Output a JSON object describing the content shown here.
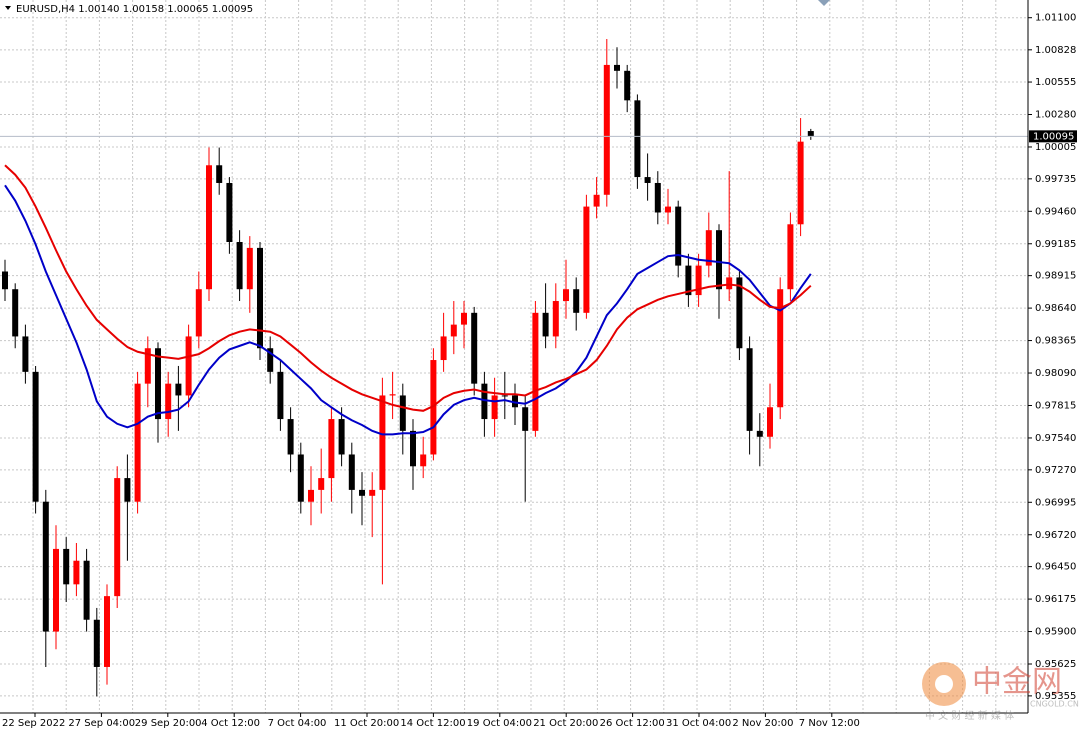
{
  "chart_data": {
    "type": "candlestick",
    "header": "EURUSD,H4  1.00140 1.00158 1.00065 1.00095",
    "ylim": [
      0.9521,
      1.0125
    ],
    "yticks": [
      {
        "value": 1.011,
        "label": "1.01100"
      },
      {
        "value": 1.00828,
        "label": "1.00828"
      },
      {
        "value": 1.00555,
        "label": "1.00555"
      },
      {
        "value": 1.0028,
        "label": "1.00280"
      },
      {
        "value": 1.00005,
        "label": "1.00005"
      },
      {
        "value": 0.99735,
        "label": "0.99735"
      },
      {
        "value": 0.9946,
        "label": "0.99460"
      },
      {
        "value": 0.99185,
        "label": "0.99185"
      },
      {
        "value": 0.98915,
        "label": "0.98915"
      },
      {
        "value": 0.9864,
        "label": "0.98640"
      },
      {
        "value": 0.98365,
        "label": "0.98365"
      },
      {
        "value": 0.9809,
        "label": "0.98090"
      },
      {
        "value": 0.97815,
        "label": "0.97815"
      },
      {
        "value": 0.9754,
        "label": "0.97540"
      },
      {
        "value": 0.9727,
        "label": "0.97270"
      },
      {
        "value": 0.96995,
        "label": "0.96995"
      },
      {
        "value": 0.9672,
        "label": "0.96720"
      },
      {
        "value": 0.9645,
        "label": "0.96450"
      },
      {
        "value": 0.96175,
        "label": "0.96175"
      },
      {
        "value": 0.959,
        "label": "0.95900"
      },
      {
        "value": 0.95625,
        "label": "0.95625"
      },
      {
        "value": 0.95355,
        "label": "0.95355"
      }
    ],
    "price_line": {
      "value": 1.00095,
      "label": "1.00095"
    },
    "x_labels": [
      "22 Sep 2022",
      "27 Sep 04:00",
      "29 Sep 20:00",
      "4 Oct 12:00",
      "7 Oct 04:00",
      "11 Oct 20:00",
      "14 Oct 12:00",
      "19 Oct 04:00",
      "21 Oct 20:00",
      "26 Oct 12:00",
      "31 Oct 04:00",
      "2 Nov 20:00",
      "7 Nov 12:00"
    ],
    "up_color": "#ff0000",
    "down_color": "#000000",
    "grid": true,
    "candles": [
      [
        0.9895,
        0.9905,
        0.987,
        0.988
      ],
      [
        0.988,
        0.9885,
        0.983,
        0.984
      ],
      [
        0.984,
        0.985,
        0.98,
        0.981
      ],
      [
        0.981,
        0.9815,
        0.969,
        0.97
      ],
      [
        0.97,
        0.971,
        0.956,
        0.959
      ],
      [
        0.959,
        0.968,
        0.9575,
        0.966
      ],
      [
        0.966,
        0.967,
        0.9615,
        0.963
      ],
      [
        0.963,
        0.9665,
        0.962,
        0.965
      ],
      [
        0.965,
        0.966,
        0.959,
        0.96
      ],
      [
        0.96,
        0.961,
        0.9535,
        0.956
      ],
      [
        0.956,
        0.963,
        0.9545,
        0.962
      ],
      [
        0.962,
        0.973,
        0.961,
        0.972
      ],
      [
        0.972,
        0.974,
        0.965,
        0.97
      ],
      [
        0.97,
        0.981,
        0.969,
        0.98
      ],
      [
        0.98,
        0.984,
        0.978,
        0.983
      ],
      [
        0.983,
        0.9835,
        0.975,
        0.977
      ],
      [
        0.977,
        0.981,
        0.9755,
        0.98
      ],
      [
        0.98,
        0.9815,
        0.976,
        0.979
      ],
      [
        0.979,
        0.985,
        0.978,
        0.984
      ],
      [
        0.984,
        0.9895,
        0.983,
        0.988
      ],
      [
        0.988,
        1.0,
        0.987,
        0.9985
      ],
      [
        0.9985,
        1.0,
        0.996,
        0.997
      ],
      [
        0.997,
        0.9975,
        0.991,
        0.992
      ],
      [
        0.992,
        0.993,
        0.987,
        0.988
      ],
      [
        0.988,
        0.9925,
        0.986,
        0.9915
      ],
      [
        0.9915,
        0.992,
        0.982,
        0.983
      ],
      [
        0.983,
        0.984,
        0.98,
        0.981
      ],
      [
        0.981,
        0.982,
        0.976,
        0.977
      ],
      [
        0.977,
        0.978,
        0.9725,
        0.974
      ],
      [
        0.974,
        0.975,
        0.969,
        0.97
      ],
      [
        0.97,
        0.973,
        0.968,
        0.971
      ],
      [
        0.971,
        0.9745,
        0.969,
        0.972
      ],
      [
        0.972,
        0.978,
        0.97,
        0.977
      ],
      [
        0.977,
        0.978,
        0.973,
        0.974
      ],
      [
        0.974,
        0.975,
        0.969,
        0.971
      ],
      [
        0.971,
        0.9725,
        0.968,
        0.9705
      ],
      [
        0.9705,
        0.9725,
        0.967,
        0.971
      ],
      [
        0.971,
        0.9805,
        0.963,
        0.979
      ],
      [
        0.979,
        0.981,
        0.977,
        0.9791
      ],
      [
        0.979,
        0.98,
        0.974,
        0.976
      ],
      [
        0.976,
        0.977,
        0.971,
        0.973
      ],
      [
        0.973,
        0.9755,
        0.972,
        0.974
      ],
      [
        0.974,
        0.983,
        0.9735,
        0.982
      ],
      [
        0.982,
        0.986,
        0.981,
        0.984
      ],
      [
        0.984,
        0.987,
        0.9825,
        0.985
      ],
      [
        0.985,
        0.987,
        0.983,
        0.986
      ],
      [
        0.986,
        0.9865,
        0.979,
        0.98
      ],
      [
        0.98,
        0.981,
        0.9755,
        0.977
      ],
      [
        0.977,
        0.9805,
        0.9755,
        0.979
      ],
      [
        0.979,
        0.981,
        0.977,
        0.979
      ],
      [
        0.979,
        0.98,
        0.9765,
        0.978
      ],
      [
        0.978,
        0.979,
        0.97,
        0.976
      ],
      [
        0.976,
        0.987,
        0.9755,
        0.986
      ],
      [
        0.986,
        0.9885,
        0.983,
        0.984
      ],
      [
        0.984,
        0.9885,
        0.983,
        0.987
      ],
      [
        0.987,
        0.9905,
        0.9855,
        0.988
      ],
      [
        0.988,
        0.989,
        0.9845,
        0.986
      ],
      [
        0.986,
        0.996,
        0.9855,
        0.995
      ],
      [
        0.995,
        0.9975,
        0.994,
        0.996
      ],
      [
        0.996,
        1.0092,
        0.995,
        1.007
      ],
      [
        1.007,
        1.0085,
        1.005,
        1.0065
      ],
      [
        1.0065,
        1.007,
        1.003,
        1.004
      ],
      [
        1.004,
        1.0045,
        0.9965,
        0.9975
      ],
      [
        0.9975,
        0.9995,
        0.9955,
        0.997
      ],
      [
        0.997,
        0.998,
        0.9935,
        0.9945
      ],
      [
        0.9945,
        0.9965,
        0.9935,
        0.995
      ],
      [
        0.995,
        0.9955,
        0.989,
        0.99
      ],
      [
        0.99,
        0.991,
        0.9865,
        0.9875
      ],
      [
        0.9875,
        0.991,
        0.9865,
        0.99
      ],
      [
        0.99,
        0.9945,
        0.989,
        0.993
      ],
      [
        0.993,
        0.9935,
        0.9855,
        0.988
      ],
      [
        0.988,
        0.998,
        0.987,
        0.989
      ],
      [
        0.989,
        0.9895,
        0.982,
        0.983
      ],
      [
        0.983,
        0.984,
        0.974,
        0.976
      ],
      [
        0.976,
        0.9775,
        0.973,
        0.9755
      ],
      [
        0.9755,
        0.98,
        0.9745,
        0.978
      ],
      [
        0.978,
        0.989,
        0.977,
        0.988
      ],
      [
        0.988,
        0.9945,
        0.987,
        0.9935
      ],
      [
        0.9935,
        1.0025,
        0.9925,
        1.0005
      ],
      [
        1.0014,
        1.00158,
        1.00065,
        1.00095
      ]
    ],
    "series": [
      {
        "color": "#0000c8",
        "values": [
          0.9968,
          0.9955,
          0.9938,
          0.9918,
          0.9895,
          0.9875,
          0.9855,
          0.9835,
          0.9812,
          0.9785,
          0.9772,
          0.9766,
          0.9763,
          0.9766,
          0.9772,
          0.9775,
          0.9776,
          0.9778,
          0.9785,
          0.9799,
          0.9812,
          0.9822,
          0.9829,
          0.9832,
          0.9835,
          0.9832,
          0.9826,
          0.982,
          0.9812,
          0.9804,
          0.9796,
          0.9786,
          0.978,
          0.9774,
          0.9769,
          0.9765,
          0.976,
          0.9757,
          0.9757,
          0.9758,
          0.9758,
          0.9759,
          0.9763,
          0.9774,
          0.9782,
          0.9786,
          0.9788,
          0.9786,
          0.9785,
          0.9786,
          0.9784,
          0.9783,
          0.9787,
          0.9792,
          0.9796,
          0.9802,
          0.981,
          0.9822,
          0.984,
          0.9858,
          0.9868,
          0.988,
          0.9893,
          0.9898,
          0.9903,
          0.9908,
          0.9909,
          0.9907,
          0.9905,
          0.9904,
          0.9903,
          0.9902,
          0.9896,
          0.9888,
          0.9877,
          0.9866,
          0.9862,
          0.9868,
          0.9881,
          0.9893
        ]
      },
      {
        "color": "#e60000",
        "values": [
          0.9985,
          0.9977,
          0.9966,
          0.995,
          0.9932,
          0.9913,
          0.9895,
          0.988,
          0.9866,
          0.9854,
          0.9846,
          0.9838,
          0.9831,
          0.9827,
          0.9825,
          0.9823,
          0.9822,
          0.9821,
          0.9823,
          0.9825,
          0.983,
          0.9836,
          0.9841,
          0.9844,
          0.9846,
          0.9845,
          0.9844,
          0.984,
          0.9833,
          0.9826,
          0.9818,
          0.9811,
          0.9805,
          0.98,
          0.9795,
          0.9791,
          0.9788,
          0.9785,
          0.9782,
          0.978,
          0.9778,
          0.9777,
          0.9781,
          0.9788,
          0.9792,
          0.9794,
          0.9795,
          0.9793,
          0.9792,
          0.9791,
          0.9791,
          0.979,
          0.9794,
          0.9797,
          0.9801,
          0.9804,
          0.9808,
          0.9812,
          0.982,
          0.9832,
          0.9846,
          0.9856,
          0.9863,
          0.9867,
          0.9871,
          0.9874,
          0.9876,
          0.9878,
          0.988,
          0.9882,
          0.9883,
          0.9884,
          0.9883,
          0.9878,
          0.9871,
          0.9865,
          0.9864,
          0.9868,
          0.9875,
          0.9883
        ]
      }
    ],
    "watermark": {
      "logo": "中金网",
      "site": "CNGOLD.CN",
      "tagline": "中 文 财 经 新 媒 体"
    }
  }
}
